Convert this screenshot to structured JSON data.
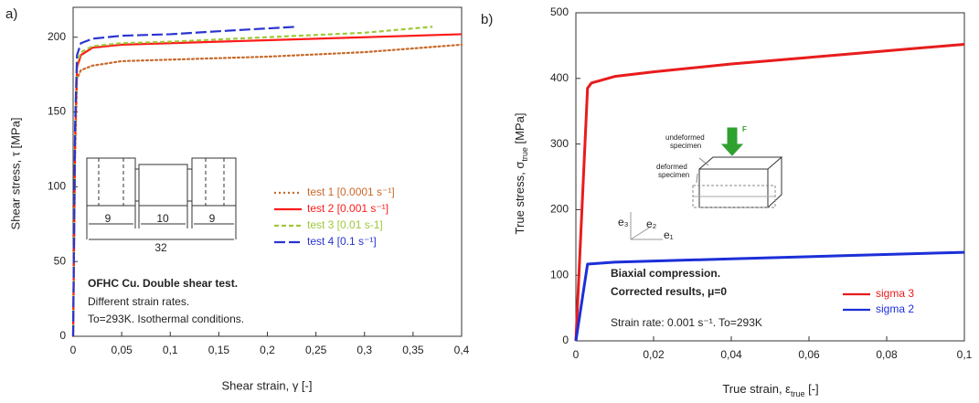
{
  "chart_data": [
    {
      "type": "line",
      "panel_label": "a)",
      "xlabel": "Shear strain, γ [-]",
      "ylabel": "Shear stress, τ [MPa]",
      "xlim": [
        0,
        0.4
      ],
      "ylim": [
        0,
        220
      ],
      "xticks": [
        0,
        {
          "value": 0.05,
          "label": "0,05"
        },
        {
          "value": 0.1,
          "label": "0,1"
        },
        {
          "value": 0.15,
          "label": "0,15"
        },
        {
          "value": 0.2,
          "label": "0,2"
        },
        {
          "value": 0.25,
          "label": "0,25"
        },
        {
          "value": 0.3,
          "label": "0,3"
        },
        {
          "value": 0.35,
          "label": "0,35"
        },
        {
          "value": 0.4,
          "label": "0,4"
        }
      ],
      "yticks": [
        0,
        50,
        100,
        150,
        200
      ],
      "grid": false,
      "legend": "center-right",
      "series": [
        {
          "name": "test 1 [0.0001 s⁻¹]",
          "color": "#c8692a",
          "dash": "dotted",
          "x": [
            0,
            0.002,
            0.004,
            0.008,
            0.02,
            0.05,
            0.1,
            0.15,
            0.2,
            0.3,
            0.4
          ],
          "values": [
            0,
            120,
            172,
            178,
            181,
            184,
            185,
            186,
            187,
            190,
            195
          ]
        },
        {
          "name": "test 2 [0.001 s⁻¹]",
          "color": "#ff1a1a",
          "dash": "solid",
          "x": [
            0,
            0.002,
            0.004,
            0.008,
            0.02,
            0.05,
            0.1,
            0.2,
            0.3,
            0.4
          ],
          "values": [
            0,
            130,
            180,
            188,
            193,
            195,
            196,
            198,
            200,
            202
          ]
        },
        {
          "name": "test 3 [0.01 s-1]",
          "color": "#9ec83a",
          "dash": "dashed",
          "x": [
            0,
            0.002,
            0.004,
            0.008,
            0.02,
            0.05,
            0.1,
            0.2,
            0.3,
            0.37
          ],
          "values": [
            0,
            135,
            183,
            190,
            194,
            196,
            197,
            200,
            203,
            207
          ]
        },
        {
          "name": "test 4 [0.1 s⁻¹]",
          "color": "#2a34d0",
          "dash": "long-dashed",
          "x": [
            0,
            0.002,
            0.004,
            0.008,
            0.02,
            0.05,
            0.1,
            0.15,
            0.23
          ],
          "values": [
            0,
            140,
            188,
            196,
            199,
            201,
            202,
            204,
            207
          ]
        }
      ],
      "annotation_title": "OFHC Cu. Double shear test.",
      "annotations": [
        "Different strain rates.",
        "To=293K. Isothermal conditions."
      ],
      "inset_labels": [
        "9",
        "10",
        "9",
        "32"
      ]
    },
    {
      "type": "line",
      "panel_label": "b)",
      "xlabel": "True strain, ε",
      "xlabel_sub": "true",
      "xlabel_end": " [-]",
      "ylabel": "True stress, σ",
      "ylabel_sub": "true",
      "ylabel_end": " [MPa]",
      "xlim": [
        0,
        0.1
      ],
      "ylim": [
        0,
        500
      ],
      "xticks": [
        0,
        {
          "value": 0.02,
          "label": "0,02"
        },
        {
          "value": 0.04,
          "label": "0,04"
        },
        {
          "value": 0.06,
          "label": "0,06"
        },
        {
          "value": 0.08,
          "label": "0,08"
        },
        {
          "value": 0.1,
          "label": "0,1"
        }
      ],
      "yticks": [
        0,
        100,
        200,
        300,
        400,
        500
      ],
      "grid": false,
      "legend": "lower-right",
      "series": [
        {
          "name": "sigma 3",
          "color": "#e81c1c",
          "dash": "solid",
          "x": [
            0,
            0.003,
            0.004,
            0.01,
            0.02,
            0.04,
            0.06,
            0.08,
            0.1
          ],
          "values": [
            0,
            385,
            393,
            403,
            410,
            422,
            432,
            442,
            452
          ]
        },
        {
          "name": "sigma 2",
          "color": "#1c2fd8",
          "dash": "solid",
          "x": [
            0,
            0.003,
            0.01,
            0.04,
            0.07,
            0.1
          ],
          "values": [
            0,
            117,
            120,
            125,
            130,
            135
          ]
        }
      ],
      "annotation_title": [
        "Biaxial compression.",
        "Corrected results, μ=0"
      ],
      "annotations": [
        "Strain rate: 0.001 s⁻¹. To=293K"
      ],
      "inset_labels": [
        "undeformed",
        "specimen",
        "deformed",
        "specimen",
        "F",
        "e₃",
        "e₂",
        "e₁"
      ]
    }
  ]
}
